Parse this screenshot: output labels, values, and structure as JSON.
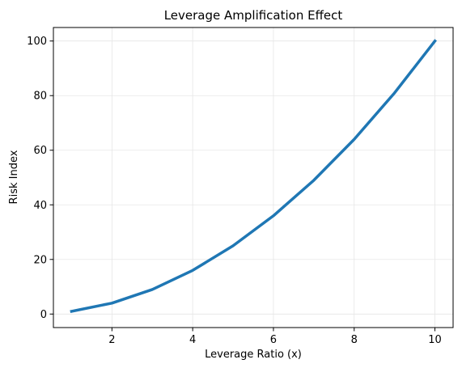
{
  "chart_data": {
    "type": "line",
    "title": "Leverage Amplification Effect",
    "xlabel": "Leverage Ratio (x)",
    "ylabel": "Risk Index",
    "xlim": [
      0.55,
      10.45
    ],
    "ylim": [
      -4.95,
      104.95
    ],
    "xticks": [
      2,
      4,
      6,
      8,
      10
    ],
    "yticks": [
      0,
      20,
      40,
      60,
      80,
      100
    ],
    "grid": true,
    "series": [
      {
        "color": "#1f77b4",
        "x": [
          1,
          2,
          3,
          4,
          5,
          6,
          7,
          8,
          9,
          10
        ],
        "y": [
          1,
          4,
          9,
          16,
          25,
          36,
          49,
          64,
          81,
          100
        ]
      }
    ]
  },
  "colors": {
    "line": "#1f77b4",
    "grid": "#e6e6e6",
    "axes": "#000000"
  }
}
